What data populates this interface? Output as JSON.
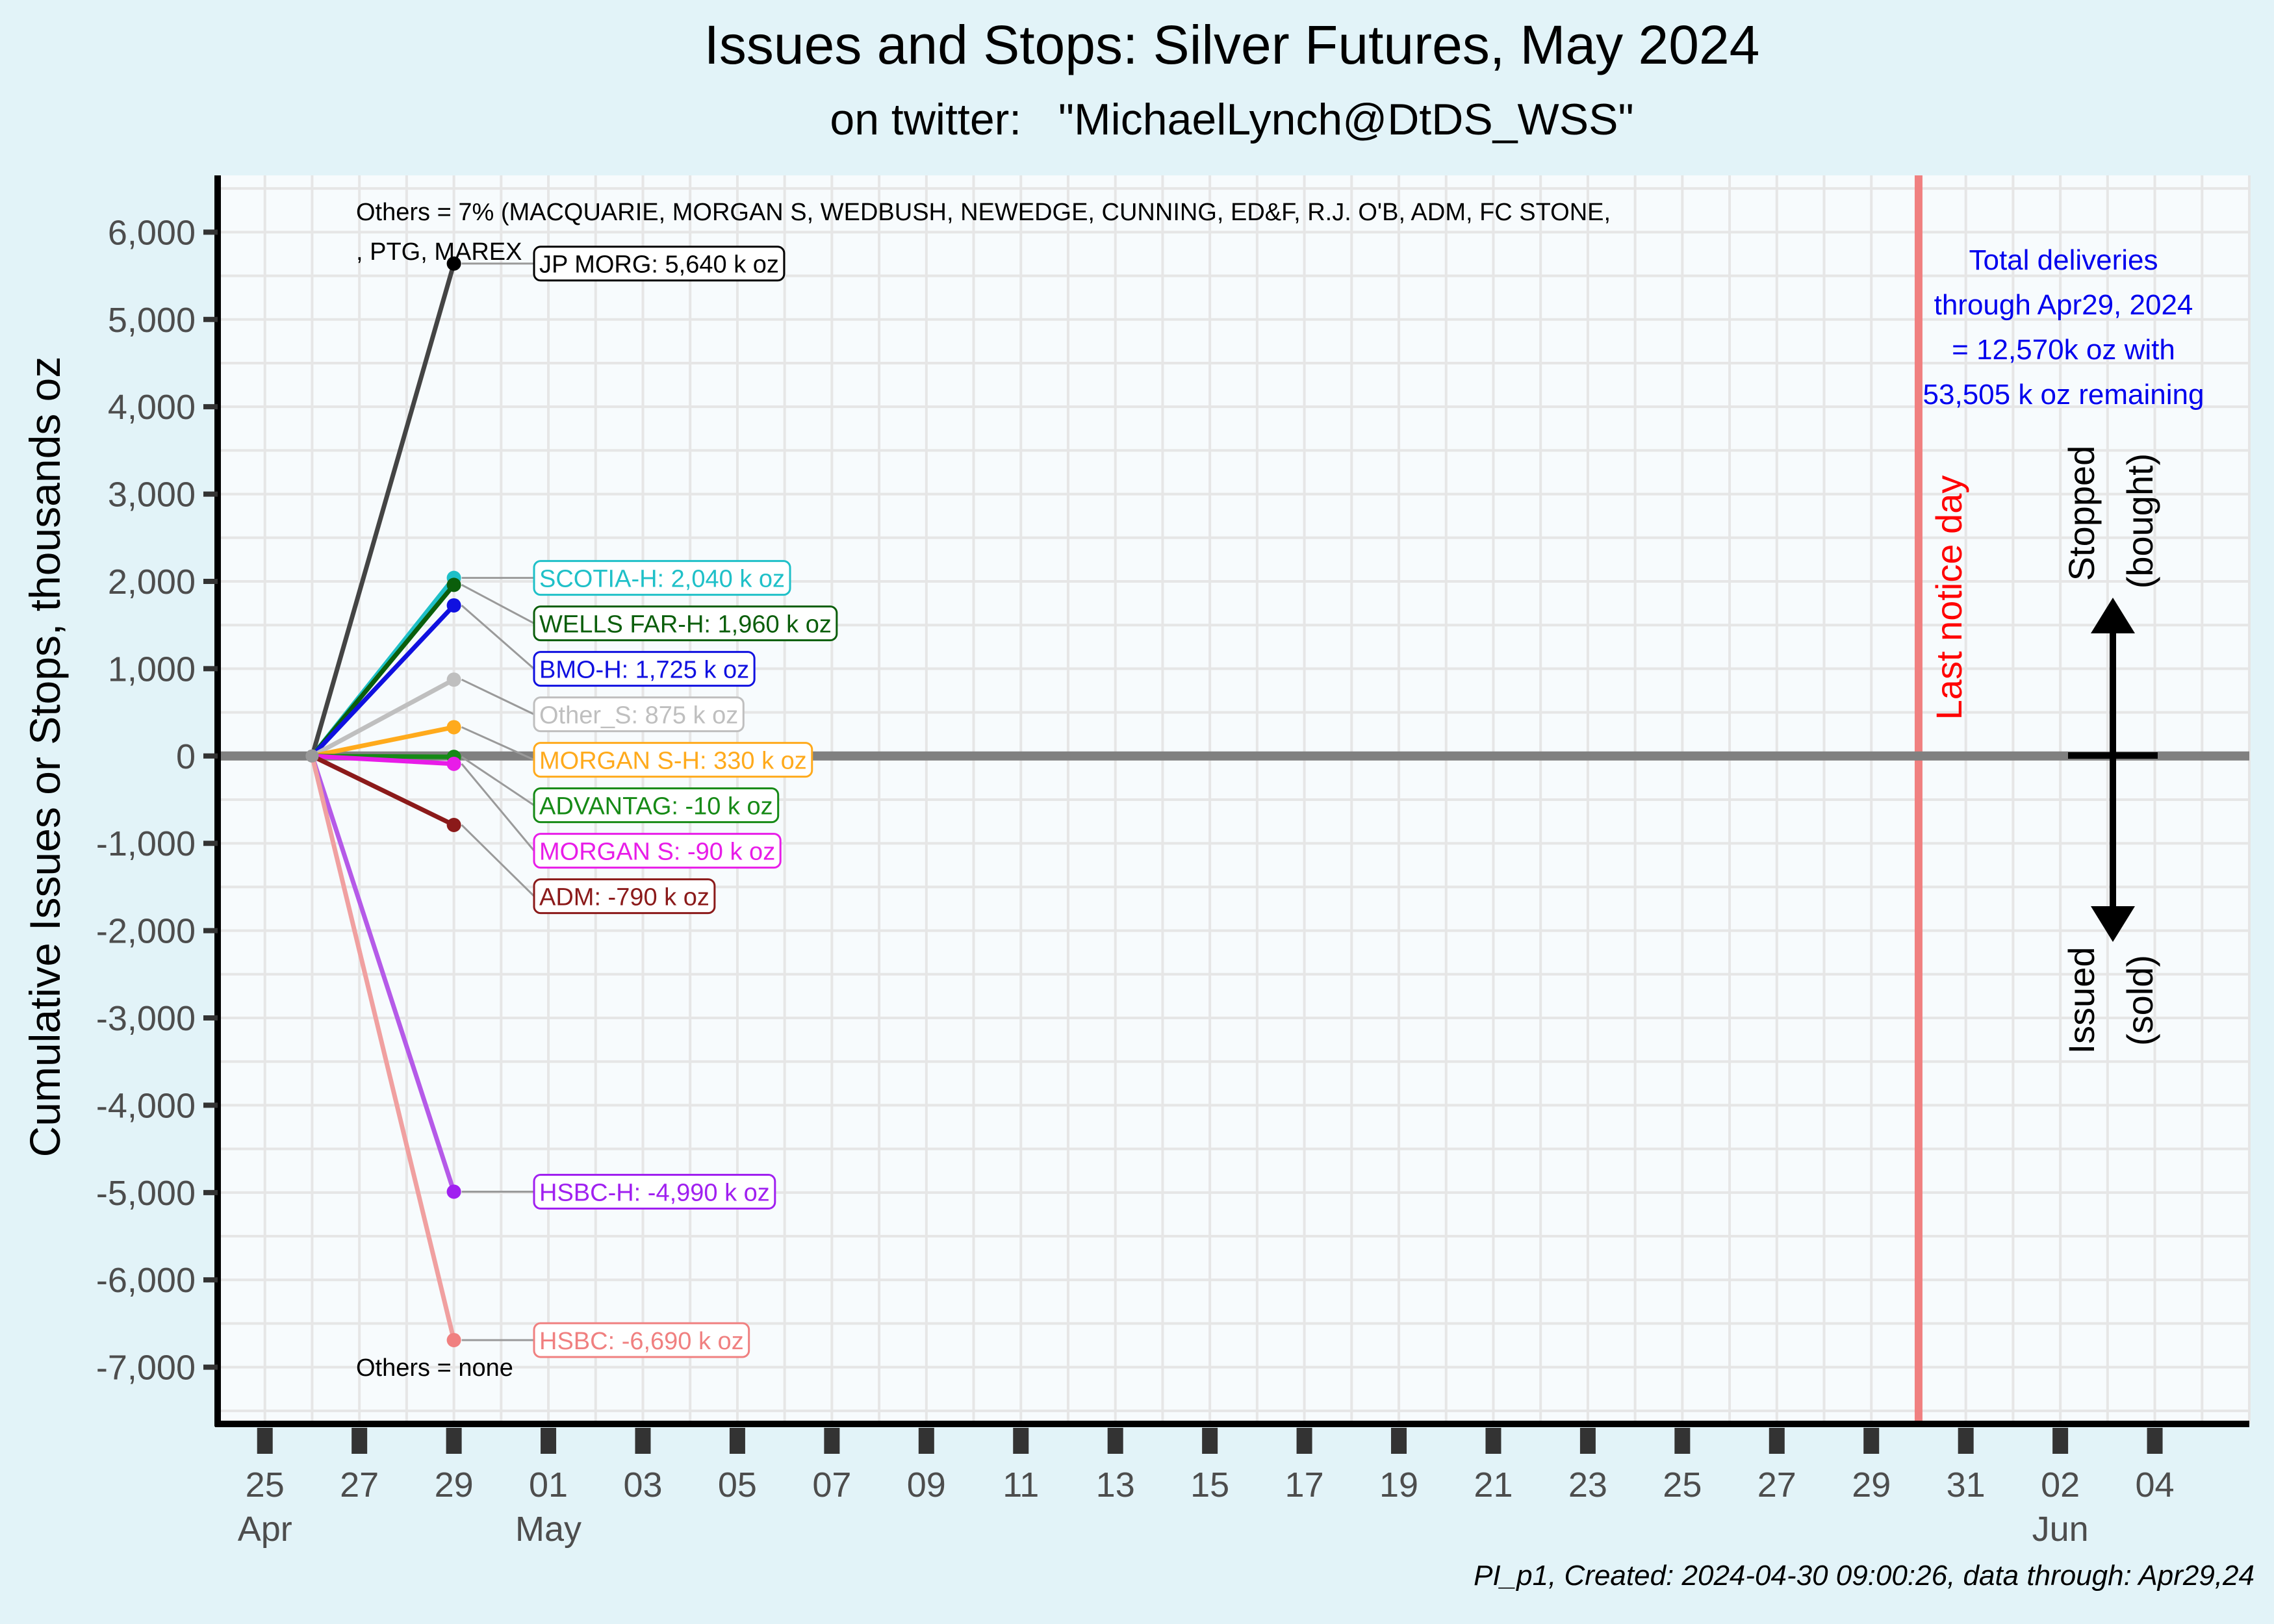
{
  "title": "Issues and Stops: Silver Futures, May 2024",
  "subtitle": "on twitter:   \"MichaelLynch@DtDS_WSS\"",
  "caption": "PI_p1, Created: 2024-04-30 09:00:26, data through: Apr29,24",
  "chart_data": {
    "type": "line",
    "title": "Issues and Stops: Silver Futures, May 2024",
    "subtitle": "on twitter:   \"MichaelLynch@DtDS_WSS\"",
    "ylabel": "Cumulative Issues or Stops, thousands oz",
    "xlabel": "",
    "x_range": [
      "2024-04-24",
      "2024-06-06"
    ],
    "ylim": [
      -7650,
      6650
    ],
    "grid": true,
    "y_ticks": [
      {
        "v": 6000,
        "label": "6,000"
      },
      {
        "v": 5000,
        "label": "5,000"
      },
      {
        "v": 4000,
        "label": "4,000"
      },
      {
        "v": 3000,
        "label": "3,000"
      },
      {
        "v": 2000,
        "label": "2,000"
      },
      {
        "v": 1000,
        "label": "1,000"
      },
      {
        "v": 0,
        "label": "0"
      },
      {
        "v": -1000,
        "label": "-1,000"
      },
      {
        "v": -2000,
        "label": "-2,000"
      },
      {
        "v": -3000,
        "label": "-3,000"
      },
      {
        "v": -4000,
        "label": "-4,000"
      },
      {
        "v": -5000,
        "label": "-5,000"
      },
      {
        "v": -6000,
        "label": "-6,000"
      },
      {
        "v": -7000,
        "label": "-7,000"
      }
    ],
    "x_ticks": [
      {
        "date": "2024-04-25",
        "label": "25",
        "sub": "Apr"
      },
      {
        "date": "2024-04-27",
        "label": "27",
        "sub": ""
      },
      {
        "date": "2024-04-29",
        "label": "29",
        "sub": ""
      },
      {
        "date": "2024-05-01",
        "label": "01",
        "sub": "May"
      },
      {
        "date": "2024-05-03",
        "label": "03",
        "sub": ""
      },
      {
        "date": "2024-05-05",
        "label": "05",
        "sub": ""
      },
      {
        "date": "2024-05-07",
        "label": "07",
        "sub": ""
      },
      {
        "date": "2024-05-09",
        "label": "09",
        "sub": ""
      },
      {
        "date": "2024-05-11",
        "label": "11",
        "sub": ""
      },
      {
        "date": "2024-05-13",
        "label": "13",
        "sub": ""
      },
      {
        "date": "2024-05-15",
        "label": "15",
        "sub": ""
      },
      {
        "date": "2024-05-17",
        "label": "17",
        "sub": ""
      },
      {
        "date": "2024-05-19",
        "label": "19",
        "sub": ""
      },
      {
        "date": "2024-05-21",
        "label": "21",
        "sub": ""
      },
      {
        "date": "2024-05-23",
        "label": "23",
        "sub": ""
      },
      {
        "date": "2024-05-25",
        "label": "25",
        "sub": ""
      },
      {
        "date": "2024-05-27",
        "label": "27",
        "sub": ""
      },
      {
        "date": "2024-05-29",
        "label": "29",
        "sub": ""
      },
      {
        "date": "2024-05-31",
        "label": "31",
        "sub": ""
      },
      {
        "date": "2024-06-02",
        "label": "02",
        "sub": "Jun"
      },
      {
        "date": "2024-06-04",
        "label": "04",
        "sub": ""
      }
    ],
    "series": [
      {
        "label": "JP MORG: 5,640 k oz",
        "color": "#000000",
        "line_color": "#444444",
        "points": [
          {
            "x": "2024-04-26",
            "y": 0
          },
          {
            "x": "2024-04-29",
            "y": 5640
          }
        ]
      },
      {
        "label": "SCOTIA-H: 2,040 k oz",
        "color": "#1fc0c8",
        "points": [
          {
            "x": "2024-04-26",
            "y": 0
          },
          {
            "x": "2024-04-29",
            "y": 2040
          }
        ]
      },
      {
        "label": "WELLS FAR-H: 1,960 k oz",
        "color": "#0b5e0b",
        "points": [
          {
            "x": "2024-04-26",
            "y": 0
          },
          {
            "x": "2024-04-29",
            "y": 1960
          }
        ]
      },
      {
        "label": "BMO-H: 1,725 k oz",
        "color": "#1010e0",
        "points": [
          {
            "x": "2024-04-26",
            "y": 0
          },
          {
            "x": "2024-04-29",
            "y": 1725
          }
        ]
      },
      {
        "label": "Other_S: 875 k oz",
        "color": "#bfbfbf",
        "points": [
          {
            "x": "2024-04-26",
            "y": 0
          },
          {
            "x": "2024-04-29",
            "y": 875
          }
        ]
      },
      {
        "label": "MORGAN S-H: 330 k oz",
        "color": "#ffaa1c",
        "points": [
          {
            "x": "2024-04-26",
            "y": 0
          },
          {
            "x": "2024-04-29",
            "y": 330
          }
        ]
      },
      {
        "label": "ADVANTAG: -10 k oz",
        "color": "#168a16",
        "points": [
          {
            "x": "2024-04-26",
            "y": 0
          },
          {
            "x": "2024-04-29",
            "y": -10
          }
        ]
      },
      {
        "label": "MORGAN S: -90 k oz",
        "color": "#e81ce8",
        "points": [
          {
            "x": "2024-04-26",
            "y": 0
          },
          {
            "x": "2024-04-29",
            "y": -90
          }
        ]
      },
      {
        "label": "ADM: -790 k oz",
        "color": "#8b1a1a",
        "points": [
          {
            "x": "2024-04-26",
            "y": 0
          },
          {
            "x": "2024-04-29",
            "y": -790
          }
        ]
      },
      {
        "label": "HSBC-H: -4,990 k oz",
        "color": "#a020f0",
        "line_color": "#b55ae8",
        "points": [
          {
            "x": "2024-04-26",
            "y": 0
          },
          {
            "x": "2024-04-29",
            "y": -4990
          }
        ]
      },
      {
        "label": "HSBC: -6,690 k oz",
        "color": "#f08080",
        "line_color": "#f0a0a0",
        "points": [
          {
            "x": "2024-04-26",
            "y": 0
          },
          {
            "x": "2024-04-29",
            "y": -6690
          }
        ]
      }
    ],
    "vline": {
      "x": "2024-05-30",
      "label": "Last notice day",
      "color": "#f08080",
      "text_color": "#ff0000"
    },
    "annotations": {
      "others_top_line1": "Others = 7% (MACQUARIE, MORGAN S, WEDBUSH, NEWEDGE, CUNNING, ED&F, R.J. O'B, ADM, FC STONE,",
      "others_top_line2": ", PTG, MAREX",
      "others_bottom": "Others = none",
      "total_lines": [
        "Total deliveries",
        "through Apr29, 2024",
        "= 12,570k oz with",
        "53,505 k oz remaining"
      ],
      "total_color": "#0000ee",
      "stopped": "Stopped",
      "bought": "(bought)",
      "issued": "Issued",
      "sold": "(sold)"
    },
    "colors": {
      "plot_background": "#f7fbfd",
      "page_background": "#e2f3f8",
      "grid": "#e6e6e6",
      "zero_line": "#808080"
    }
  }
}
